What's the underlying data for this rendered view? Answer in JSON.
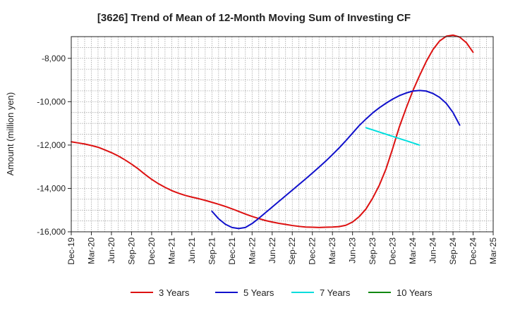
{
  "chart_data": {
    "type": "line",
    "title": "[3626]  Trend of Mean of 12-Month Moving Sum of Investing CF",
    "xlabel": "",
    "ylabel": "Amount (million yen)",
    "ylim": [
      -16000,
      -7000
    ],
    "yticks": [
      -16000,
      -14000,
      -12000,
      -10000,
      -8000
    ],
    "ytick_labels": [
      "-16,000",
      "-14,000",
      "-12,000",
      "-10,000",
      "-8,000"
    ],
    "xticks": [
      "Dec-19",
      "Mar-20",
      "Jun-20",
      "Sep-20",
      "Dec-20",
      "Mar-21",
      "Jun-21",
      "Sep-21",
      "Dec-21",
      "Mar-22",
      "Jun-22",
      "Sep-22",
      "Dec-22",
      "Mar-23",
      "Jun-23",
      "Sep-23",
      "Dec-23",
      "Mar-24",
      "Jun-24",
      "Sep-24",
      "Dec-24",
      "Mar-25"
    ],
    "grid": true,
    "legend_position": "bottom",
    "series": [
      {
        "name": "3 Years",
        "color": "#dd1111",
        "start": "Dec-19",
        "values": [
          -11850,
          -11900,
          -11950,
          -12020,
          -12100,
          -12220,
          -12350,
          -12500,
          -12680,
          -12880,
          -13100,
          -13350,
          -13580,
          -13780,
          -13950,
          -14100,
          -14220,
          -14320,
          -14400,
          -14470,
          -14550,
          -14640,
          -14730,
          -14830,
          -14940,
          -15060,
          -15180,
          -15290,
          -15390,
          -15480,
          -15550,
          -15610,
          -15660,
          -15710,
          -15750,
          -15780,
          -15790,
          -15800,
          -15790,
          -15780,
          -15760,
          -15700,
          -15550,
          -15300,
          -14950,
          -14450,
          -13850,
          -13100,
          -12150,
          -11150,
          -10300,
          -9500,
          -8800,
          -8150,
          -7600,
          -7200,
          -6980,
          -6930,
          -7020,
          -7280,
          -7720
        ]
      },
      {
        "name": "5 Years",
        "color": "#1111cc",
        "start": "Sep-21",
        "values": [
          -15050,
          -15400,
          -15650,
          -15800,
          -15850,
          -15800,
          -15620,
          -15380,
          -15120,
          -14860,
          -14600,
          -14340,
          -14080,
          -13820,
          -13560,
          -13290,
          -13020,
          -12740,
          -12440,
          -12130,
          -11800,
          -11450,
          -11100,
          -10800,
          -10520,
          -10280,
          -10070,
          -9880,
          -9720,
          -9600,
          -9510,
          -9480,
          -9510,
          -9620,
          -9800,
          -10080,
          -10500,
          -11080
        ]
      },
      {
        "name": "7 Years",
        "color": "#00dddd",
        "start": "Aug-23",
        "values": [
          -11200,
          -11300,
          -11400,
          -11500,
          -11600,
          -11700,
          -11800,
          -11900,
          -12000
        ]
      },
      {
        "name": "10 Years",
        "color": "#118811",
        "start": "Dec-19",
        "values": []
      }
    ]
  }
}
